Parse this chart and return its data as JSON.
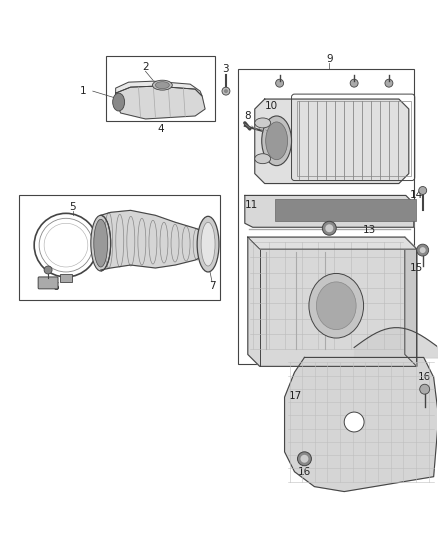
{
  "background_color": "#ffffff",
  "fig_width": 4.38,
  "fig_height": 5.33,
  "dpi": 100,
  "line_color": "#444444",
  "fill_light": "#e8e8e8",
  "fill_mid": "#cccccc",
  "fill_dark": "#aaaaaa"
}
